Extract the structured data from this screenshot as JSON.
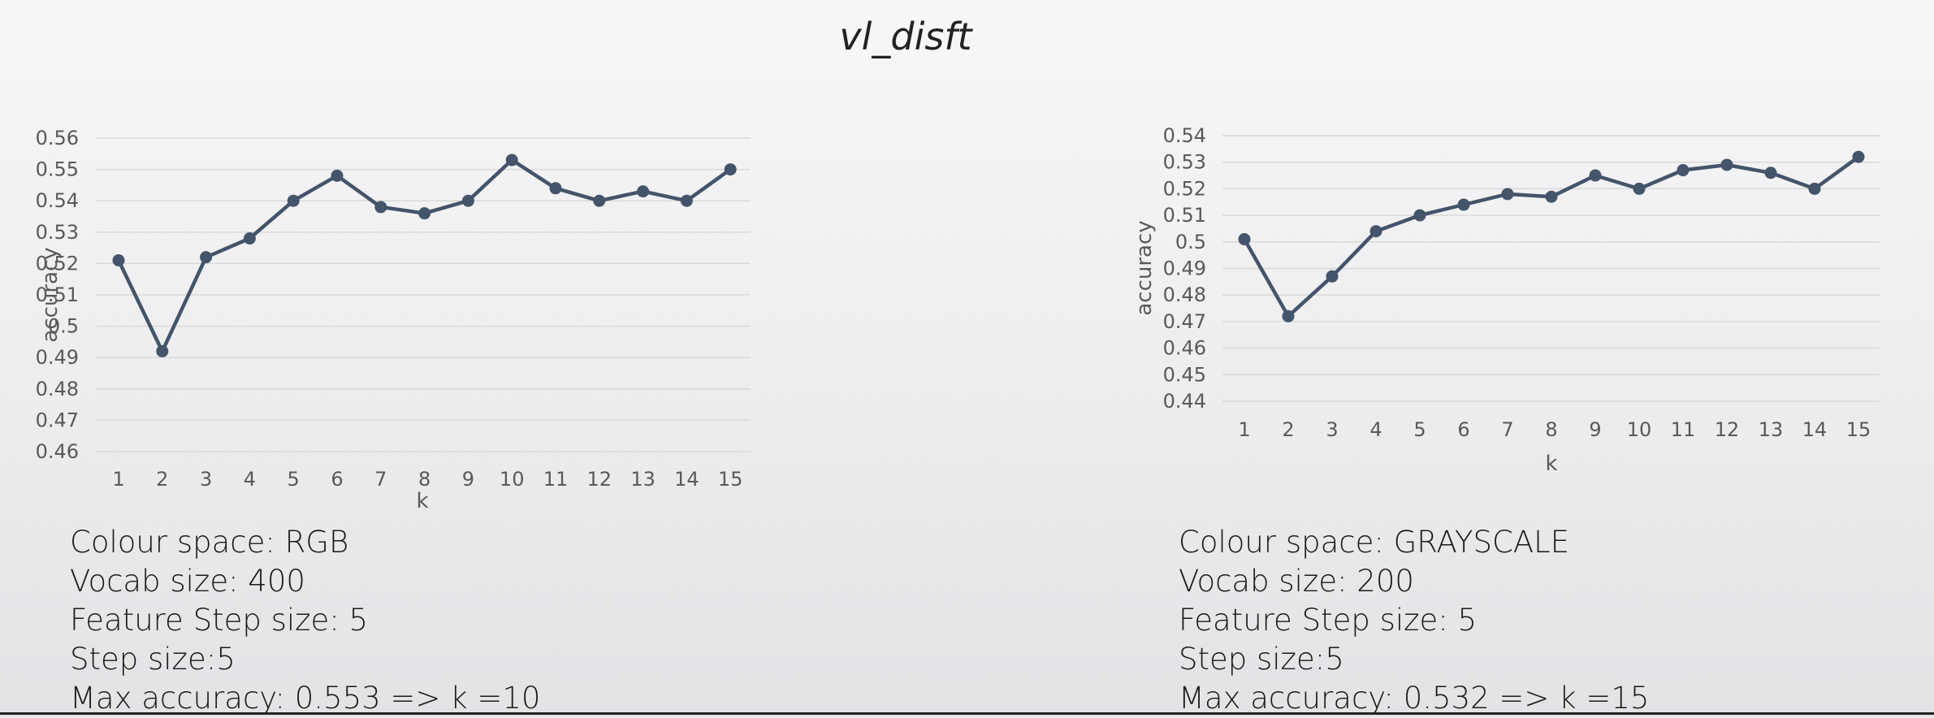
{
  "slide": {
    "title": "vl_disft"
  },
  "colors": {
    "series": "#44546a",
    "grid": "#d9d9d9",
    "tick_text": "#595959"
  },
  "chart_data": [
    {
      "type": "line",
      "title": "",
      "xlabel": "k",
      "ylabel": "accuracy",
      "categories": [
        "1",
        "2",
        "3",
        "4",
        "5",
        "6",
        "7",
        "8",
        "9",
        "10",
        "11",
        "12",
        "13",
        "14",
        "15"
      ],
      "series": [
        {
          "values": [
            0.521,
            0.492,
            0.522,
            0.528,
            0.54,
            0.548,
            0.538,
            0.536,
            0.54,
            0.553,
            0.544,
            0.54,
            0.543,
            0.54,
            0.55
          ]
        }
      ],
      "ylim": [
        0.46,
        0.56
      ],
      "yticks": [
        "0.46",
        "0.47",
        "0.48",
        "0.49",
        "0.5",
        "0.51",
        "0.52",
        "0.53",
        "0.54",
        "0.55",
        "0.56"
      ],
      "grid": true,
      "legend": "none"
    },
    {
      "type": "line",
      "title": "",
      "xlabel": "k",
      "ylabel": "accuracy",
      "categories": [
        "1",
        "2",
        "3",
        "4",
        "5",
        "6",
        "7",
        "8",
        "9",
        "10",
        "11",
        "12",
        "13",
        "14",
        "15"
      ],
      "series": [
        {
          "values": [
            0.501,
            0.472,
            0.487,
            0.504,
            0.51,
            0.514,
            0.518,
            0.517,
            0.525,
            0.52,
            0.527,
            0.529,
            0.526,
            0.52,
            0.532
          ]
        }
      ],
      "ylim": [
        0.44,
        0.54
      ],
      "yticks": [
        "0.44",
        "0.45",
        "0.46",
        "0.47",
        "0.48",
        "0.49",
        "0.5",
        "0.51",
        "0.52",
        "0.53",
        "0.54"
      ],
      "grid": true,
      "legend": "none"
    }
  ],
  "info_left": {
    "colour_space": "Colour space: RGB",
    "vocab_size": "Vocab size: 400",
    "feature_step": "Feature Step size: 5",
    "step_size": "Step size:5",
    "max_accuracy": "Max accuracy: 0.553 => k =10"
  },
  "info_right": {
    "colour_space": "Colour space: GRAYSCALE",
    "vocab_size": "Vocab size: 200",
    "feature_step": "Feature Step size: 5",
    "step_size": "Step size:5",
    "max_accuracy": "Max accuracy: 0.532 => k =15"
  }
}
